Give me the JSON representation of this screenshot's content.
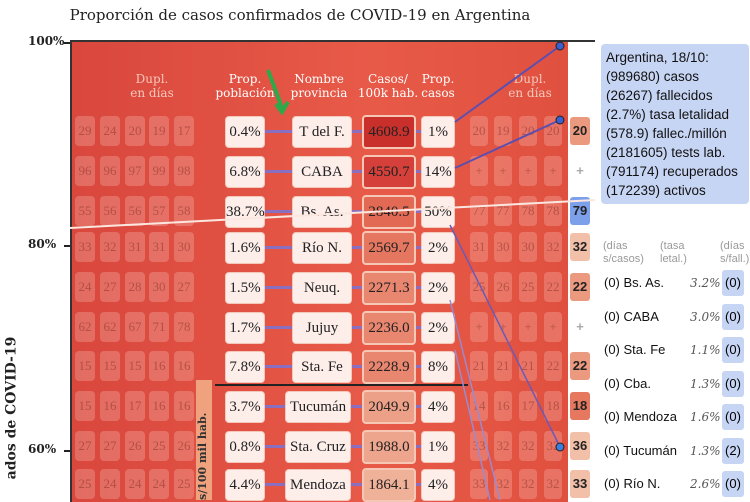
{
  "chart_data": {
    "type": "table",
    "title": "Proporción de casos confirmados de COVID-19 en Argentina",
    "ylabel": "ados de COVID-19",
    "yticks": [
      "100%",
      "80%",
      "60%"
    ],
    "side_label": "s/100 mil hab.",
    "headers": {
      "dupl_left": "Dupl.\nen días",
      "prop_pob": "Prop.\npoblación",
      "nombre": "Nombre\nprovincia",
      "casos100k": "Casos/\n100k hab.",
      "prop_casos": "Prop.\ncasos",
      "dupl_right": "Dupl.\nen días"
    },
    "rows": [
      {
        "dupl_left": [
          "29",
          "24",
          "20",
          "19",
          "17"
        ],
        "prop_pob": "0.4%",
        "nombre": "T del F.",
        "casos100k": "4608.9",
        "prop_casos": "1%",
        "dupl_right": [
          "20",
          "19",
          "20",
          "20"
        ],
        "final": "20",
        "final_color": "#eb9a80"
      },
      {
        "dupl_left": [
          "96",
          "96",
          "97",
          "99",
          "98"
        ],
        "prop_pob": "6.8%",
        "nombre": "CABA",
        "casos100k": "4550.7",
        "prop_casos": "14%",
        "dupl_right": [
          "+",
          "+",
          "+",
          "+"
        ],
        "final": "+",
        "final_color": "#ffffff"
      },
      {
        "dupl_left": [
          "55",
          "56",
          "56",
          "57",
          "58"
        ],
        "prop_pob": "38.7%",
        "nombre": "Bs. As.",
        "casos100k": "2840.5",
        "prop_casos": "50%",
        "dupl_right": [
          "77",
          "77",
          "78",
          "78"
        ],
        "final": "79",
        "final_color": "#7da0ea"
      },
      {
        "dupl_left": [
          "33",
          "32",
          "31",
          "31",
          "30"
        ],
        "prop_pob": "1.6%",
        "nombre": "Río N.",
        "casos100k": "2569.7",
        "prop_casos": "2%",
        "dupl_right": [
          "31",
          "30",
          "30",
          "32"
        ],
        "final": "32",
        "final_color": "#f2c0a8"
      },
      {
        "dupl_left": [
          "24",
          "27",
          "28",
          "30",
          "27"
        ],
        "prop_pob": "1.5%",
        "nombre": "Neuq.",
        "casos100k": "2271.3",
        "prop_casos": "2%",
        "dupl_right": [
          "25",
          "26",
          "25",
          "22"
        ],
        "final": "22",
        "final_color": "#eb9a80"
      },
      {
        "dupl_left": [
          "62",
          "62",
          "67",
          "71",
          "78"
        ],
        "prop_pob": "1.7%",
        "nombre": "Jujuy",
        "casos100k": "2236.0",
        "prop_casos": "2%",
        "dupl_right": [
          "+",
          "+",
          "+",
          "+"
        ],
        "final": "+",
        "final_color": "#ffffff"
      },
      {
        "dupl_left": [
          "15",
          "15",
          "15",
          "16",
          "16"
        ],
        "prop_pob": "7.8%",
        "nombre": "Sta. Fe",
        "casos100k": "2228.9",
        "prop_casos": "8%",
        "dupl_right": [
          "21",
          "21",
          "21",
          "22"
        ],
        "final": "22",
        "final_color": "#eb9a80"
      },
      {
        "dupl_left": [
          "15",
          "16",
          "17",
          "16",
          "16"
        ],
        "prop_pob": "3.7%",
        "nombre": "Tucumán",
        "casos100k": "2049.9",
        "prop_casos": "4%",
        "dupl_right": [
          "14",
          "16",
          "17",
          "18"
        ],
        "final": "18",
        "final_color": "#e5785f"
      },
      {
        "dupl_left": [
          "27",
          "27",
          "26",
          "25",
          "26"
        ],
        "prop_pob": "0.8%",
        "nombre": "Sta. Cruz",
        "casos100k": "1988.0",
        "prop_casos": "1%",
        "dupl_right": [
          "33",
          "32",
          "32",
          "32"
        ],
        "final": "36",
        "final_color": "#f2c0a8"
      },
      {
        "dupl_left": [
          "25",
          "24",
          "24",
          "24",
          "25"
        ],
        "prop_pob": "4.4%",
        "nombre": "Mendoza",
        "casos100k": "1864.1",
        "prop_casos": "4%",
        "dupl_right": [
          "33",
          "32",
          "32",
          "32"
        ],
        "final": "33",
        "final_color": "#f2c0a8"
      }
    ],
    "casos_colors": [
      "#c9302c",
      "#d5403a",
      "#e26a55",
      "#e57660",
      "#e98670",
      "#e98670",
      "#e98670",
      "#eda088",
      "#eea58d",
      "#f0b199"
    ]
  },
  "panel": {
    "lines": [
      "Argentina, 18/10:",
      "(989680) casos",
      "(26267) fallecidos",
      "(2.7%) tasa letalidad",
      "(578.9) fallec./millón",
      "(2181605) tests lab.",
      "(791174) recuperados",
      "(172239) activos"
    ],
    "sub_headers": [
      "(días\ns/casos)",
      "(tasa\nletal.)",
      "(días\ns/fall.)"
    ],
    "provinces": [
      {
        "name": "(0) Bs. As.",
        "letal": "3.2%",
        "dias": "(0)"
      },
      {
        "name": "(0) CABA",
        "letal": "3.0%",
        "dias": "(0)"
      },
      {
        "name": "(0) Sta. Fe",
        "letal": "1.1%",
        "dias": "(0)"
      },
      {
        "name": "(0) Cba.",
        "letal": "1.3%",
        "dias": "(0)"
      },
      {
        "name": "(0) Mendoza",
        "letal": "1.6%",
        "dias": "(0)"
      },
      {
        "name": "(0) Tucumán",
        "letal": "1.3%",
        "dias": "(2)"
      },
      {
        "name": "(0) Río N.",
        "letal": "2.6%",
        "dias": "(0)"
      }
    ]
  }
}
